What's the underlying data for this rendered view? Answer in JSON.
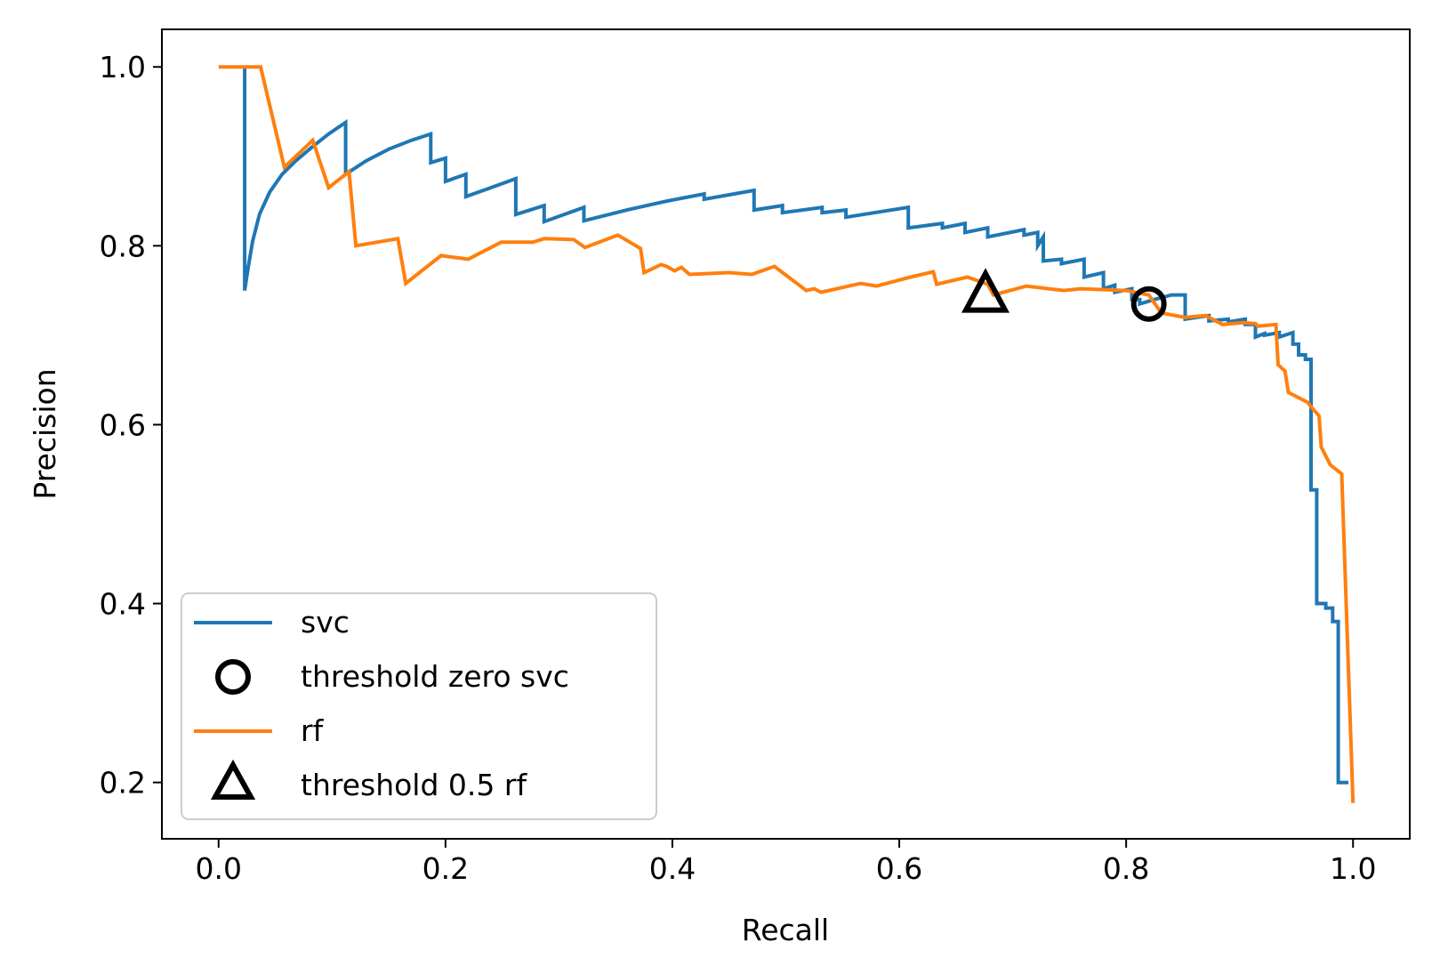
{
  "chart_data": {
    "type": "line",
    "title": "",
    "xlabel": "Recall",
    "ylabel": "Precision",
    "xlim": [
      -0.05,
      1.05
    ],
    "ylim": [
      0.137,
      1.042
    ],
    "xticks": [
      0.0,
      0.2,
      0.4,
      0.6,
      0.8,
      1.0
    ],
    "xtick_labels": [
      "0.0",
      "0.2",
      "0.4",
      "0.6",
      "0.8",
      "1.0"
    ],
    "yticks": [
      0.2,
      0.4,
      0.6,
      0.8,
      1.0
    ],
    "ytick_labels": [
      "0.2",
      "0.4",
      "0.6",
      "0.8",
      "1.0"
    ],
    "grid": false,
    "legend_position": "lower-left",
    "legend": [
      {
        "label": "svc",
        "kind": "line",
        "color": "#1f77b4"
      },
      {
        "label": "threshold zero svc",
        "kind": "circle",
        "color": "#000000"
      },
      {
        "label": "rf",
        "kind": "line",
        "color": "#ff7f0e"
      },
      {
        "label": "threshold 0.5 rf",
        "kind": "triangle",
        "color": "#000000"
      }
    ],
    "series": [
      {
        "name": "svc",
        "color": "#1f77b4",
        "points": [
          [
            0.023,
            1.0
          ],
          [
            0.023,
            0.75
          ],
          [
            0.026,
            0.775
          ],
          [
            0.03,
            0.805
          ],
          [
            0.036,
            0.835
          ],
          [
            0.045,
            0.86
          ],
          [
            0.056,
            0.88
          ],
          [
            0.068,
            0.895
          ],
          [
            0.082,
            0.91
          ],
          [
            0.097,
            0.925
          ],
          [
            0.112,
            0.938
          ],
          [
            0.112,
            0.88
          ],
          [
            0.13,
            0.895
          ],
          [
            0.15,
            0.908
          ],
          [
            0.17,
            0.918
          ],
          [
            0.187,
            0.925
          ],
          [
            0.187,
            0.893
          ],
          [
            0.2,
            0.898
          ],
          [
            0.2,
            0.872
          ],
          [
            0.218,
            0.88
          ],
          [
            0.218,
            0.855
          ],
          [
            0.24,
            0.865
          ],
          [
            0.262,
            0.875
          ],
          [
            0.262,
            0.835
          ],
          [
            0.287,
            0.845
          ],
          [
            0.287,
            0.827
          ],
          [
            0.322,
            0.843
          ],
          [
            0.322,
            0.828
          ],
          [
            0.36,
            0.84
          ],
          [
            0.395,
            0.85
          ],
          [
            0.428,
            0.858
          ],
          [
            0.428,
            0.852
          ],
          [
            0.472,
            0.862
          ],
          [
            0.472,
            0.84
          ],
          [
            0.497,
            0.845
          ],
          [
            0.497,
            0.837
          ],
          [
            0.532,
            0.843
          ],
          [
            0.532,
            0.837
          ],
          [
            0.553,
            0.84
          ],
          [
            0.553,
            0.832
          ],
          [
            0.608,
            0.843
          ],
          [
            0.608,
            0.82
          ],
          [
            0.638,
            0.825
          ],
          [
            0.638,
            0.82
          ],
          [
            0.658,
            0.825
          ],
          [
            0.658,
            0.815
          ],
          [
            0.678,
            0.82
          ],
          [
            0.678,
            0.81
          ],
          [
            0.71,
            0.818
          ],
          [
            0.71,
            0.812
          ],
          [
            0.722,
            0.815
          ],
          [
            0.722,
            0.8
          ],
          [
            0.727,
            0.81
          ],
          [
            0.727,
            0.783
          ],
          [
            0.743,
            0.785
          ],
          [
            0.743,
            0.78
          ],
          [
            0.763,
            0.785
          ],
          [
            0.763,
            0.765
          ],
          [
            0.78,
            0.77
          ],
          [
            0.78,
            0.752
          ],
          [
            0.79,
            0.756
          ],
          [
            0.79,
            0.748
          ],
          [
            0.805,
            0.752
          ],
          [
            0.805,
            0.74
          ],
          [
            0.812,
            0.74
          ],
          [
            0.812,
            0.735
          ],
          [
            0.825,
            0.74
          ],
          [
            0.84,
            0.745
          ],
          [
            0.852,
            0.745
          ],
          [
            0.852,
            0.718
          ],
          [
            0.873,
            0.722
          ],
          [
            0.873,
            0.716
          ],
          [
            0.89,
            0.718
          ],
          [
            0.89,
            0.715
          ],
          [
            0.905,
            0.718
          ],
          [
            0.905,
            0.712
          ],
          [
            0.914,
            0.712
          ],
          [
            0.914,
            0.698
          ],
          [
            0.922,
            0.702
          ],
          [
            0.922,
            0.7
          ],
          [
            0.935,
            0.703
          ],
          [
            0.935,
            0.698
          ],
          [
            0.947,
            0.703
          ],
          [
            0.947,
            0.69
          ],
          [
            0.952,
            0.69
          ],
          [
            0.952,
            0.678
          ],
          [
            0.958,
            0.678
          ],
          [
            0.958,
            0.673
          ],
          [
            0.963,
            0.673
          ],
          [
            0.963,
            0.527
          ],
          [
            0.968,
            0.527
          ],
          [
            0.968,
            0.4
          ],
          [
            0.976,
            0.4
          ],
          [
            0.976,
            0.395
          ],
          [
            0.982,
            0.395
          ],
          [
            0.982,
            0.38
          ],
          [
            0.987,
            0.38
          ],
          [
            0.987,
            0.2
          ],
          [
            0.996,
            0.2
          ]
        ]
      },
      {
        "name": "rf",
        "color": "#ff7f0e",
        "points": [
          [
            0.0,
            1.0
          ],
          [
            0.016,
            1.0
          ],
          [
            0.037,
            1.0
          ],
          [
            0.058,
            0.888
          ],
          [
            0.083,
            0.918
          ],
          [
            0.097,
            0.865
          ],
          [
            0.115,
            0.883
          ],
          [
            0.121,
            0.8
          ],
          [
            0.158,
            0.808
          ],
          [
            0.165,
            0.758
          ],
          [
            0.196,
            0.789
          ],
          [
            0.22,
            0.785
          ],
          [
            0.249,
            0.804
          ],
          [
            0.277,
            0.804
          ],
          [
            0.287,
            0.808
          ],
          [
            0.313,
            0.807
          ],
          [
            0.323,
            0.798
          ],
          [
            0.352,
            0.812
          ],
          [
            0.372,
            0.797
          ],
          [
            0.375,
            0.77
          ],
          [
            0.39,
            0.779
          ],
          [
            0.395,
            0.777
          ],
          [
            0.402,
            0.772
          ],
          [
            0.408,
            0.776
          ],
          [
            0.415,
            0.768
          ],
          [
            0.45,
            0.77
          ],
          [
            0.47,
            0.768
          ],
          [
            0.49,
            0.777
          ],
          [
            0.518,
            0.75
          ],
          [
            0.525,
            0.752
          ],
          [
            0.531,
            0.748
          ],
          [
            0.566,
            0.758
          ],
          [
            0.58,
            0.755
          ],
          [
            0.61,
            0.765
          ],
          [
            0.63,
            0.771
          ],
          [
            0.633,
            0.757
          ],
          [
            0.66,
            0.765
          ],
          [
            0.678,
            0.757
          ],
          [
            0.683,
            0.745
          ],
          [
            0.712,
            0.755
          ],
          [
            0.745,
            0.75
          ],
          [
            0.76,
            0.752
          ],
          [
            0.8,
            0.75
          ],
          [
            0.82,
            0.745
          ],
          [
            0.831,
            0.725
          ],
          [
            0.852,
            0.72
          ],
          [
            0.87,
            0.722
          ],
          [
            0.885,
            0.712
          ],
          [
            0.903,
            0.714
          ],
          [
            0.914,
            0.713
          ],
          [
            0.916,
            0.71
          ],
          [
            0.932,
            0.712
          ],
          [
            0.934,
            0.667
          ],
          [
            0.94,
            0.66
          ],
          [
            0.943,
            0.636
          ],
          [
            0.96,
            0.625
          ],
          [
            0.963,
            0.62
          ],
          [
            0.97,
            0.61
          ],
          [
            0.972,
            0.575
          ],
          [
            0.98,
            0.555
          ],
          [
            0.99,
            0.545
          ],
          [
            1.0,
            0.177
          ]
        ]
      }
    ],
    "markers": [
      {
        "name": "threshold zero svc",
        "shape": "circle",
        "x": 0.82,
        "y": 0.735
      },
      {
        "name": "threshold 0.5 rf",
        "shape": "triangle",
        "x": 0.676,
        "y": 0.745
      }
    ]
  }
}
